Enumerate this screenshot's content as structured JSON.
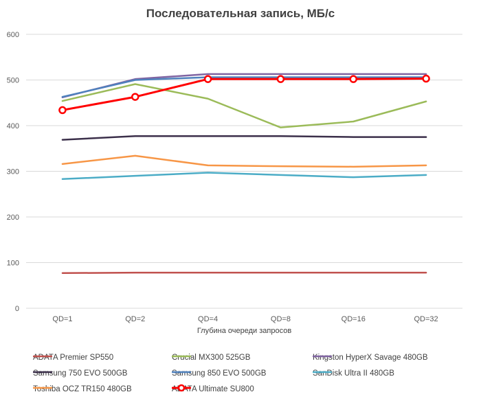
{
  "chart_data": {
    "type": "line",
    "title": "Последовательная запись, МБ/с",
    "xlabel": "Глубина очереди запросов",
    "ylabel": "",
    "ylim": [
      0,
      600
    ],
    "yticks": [
      0,
      100,
      200,
      300,
      400,
      500,
      600
    ],
    "grid": true,
    "legend_position": "bottom",
    "categories": [
      "QD=1",
      "QD=2",
      "QD=4",
      "QD=8",
      "QD=16",
      "QD=32"
    ],
    "series": [
      {
        "name": "ADATA Premier SP550",
        "color": "#C0504D",
        "markers": false,
        "values": [
          77,
          78,
          78,
          78,
          78,
          78
        ]
      },
      {
        "name": "Crucial MX300 525GB",
        "color": "#9BBB59",
        "markers": false,
        "values": [
          454,
          491,
          459,
          396,
          409,
          453
        ]
      },
      {
        "name": "Kingston HyperX Savage 480GB",
        "color": "#8064A2",
        "markers": false,
        "values": [
          462,
          502,
          513,
          513,
          513,
          513
        ]
      },
      {
        "name": "Samsung 750 EVO 500GB",
        "color": "#3B2F4A",
        "markers": false,
        "values": [
          369,
          377,
          377,
          377,
          375,
          375
        ]
      },
      {
        "name": "Samsung 850 EVO 500GB",
        "color": "#4F81BD",
        "markers": false,
        "values": [
          463,
          500,
          506,
          506,
          506,
          506
        ]
      },
      {
        "name": "SanDisk Ultra II 480GB",
        "color": "#4BACC6",
        "markers": false,
        "values": [
          283,
          290,
          297,
          292,
          287,
          292
        ]
      },
      {
        "name": "Toshiba OCZ TR150 480GB",
        "color": "#F79646",
        "markers": false,
        "values": [
          316,
          334,
          313,
          311,
          310,
          313
        ]
      },
      {
        "name": "ADATA Ultimate SU800",
        "color": "#FF0000",
        "markers": true,
        "values": [
          434,
          463,
          502,
          502,
          502,
          503
        ]
      }
    ]
  }
}
